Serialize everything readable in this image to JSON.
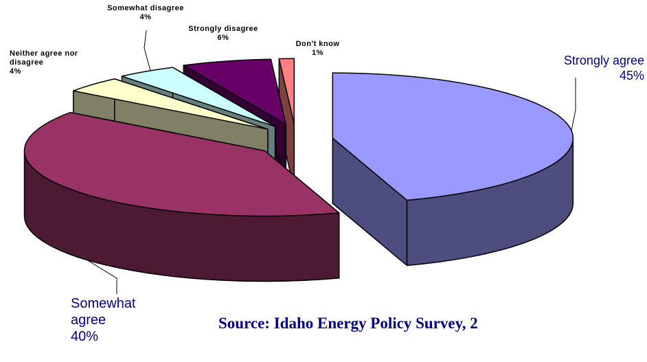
{
  "chart_data": {
    "type": "pie3d",
    "categories": [
      "Strongly agree",
      "Somewhat agree",
      "Neither agree nor disagree",
      "Somewhat disagree",
      "Strongly disagree",
      "Don't know"
    ],
    "values": [
      45,
      40,
      4,
      4,
      6,
      1
    ],
    "value_labels": [
      "45%",
      "40%",
      "4%",
      "4%",
      "6%",
      "1%"
    ],
    "colors": [
      "#9999ff",
      "#993366",
      "#ffffcc",
      "#ccffff",
      "#660066",
      "#ff8080"
    ],
    "source": "Source:  Idaho Energy Policy Survey, 2"
  }
}
